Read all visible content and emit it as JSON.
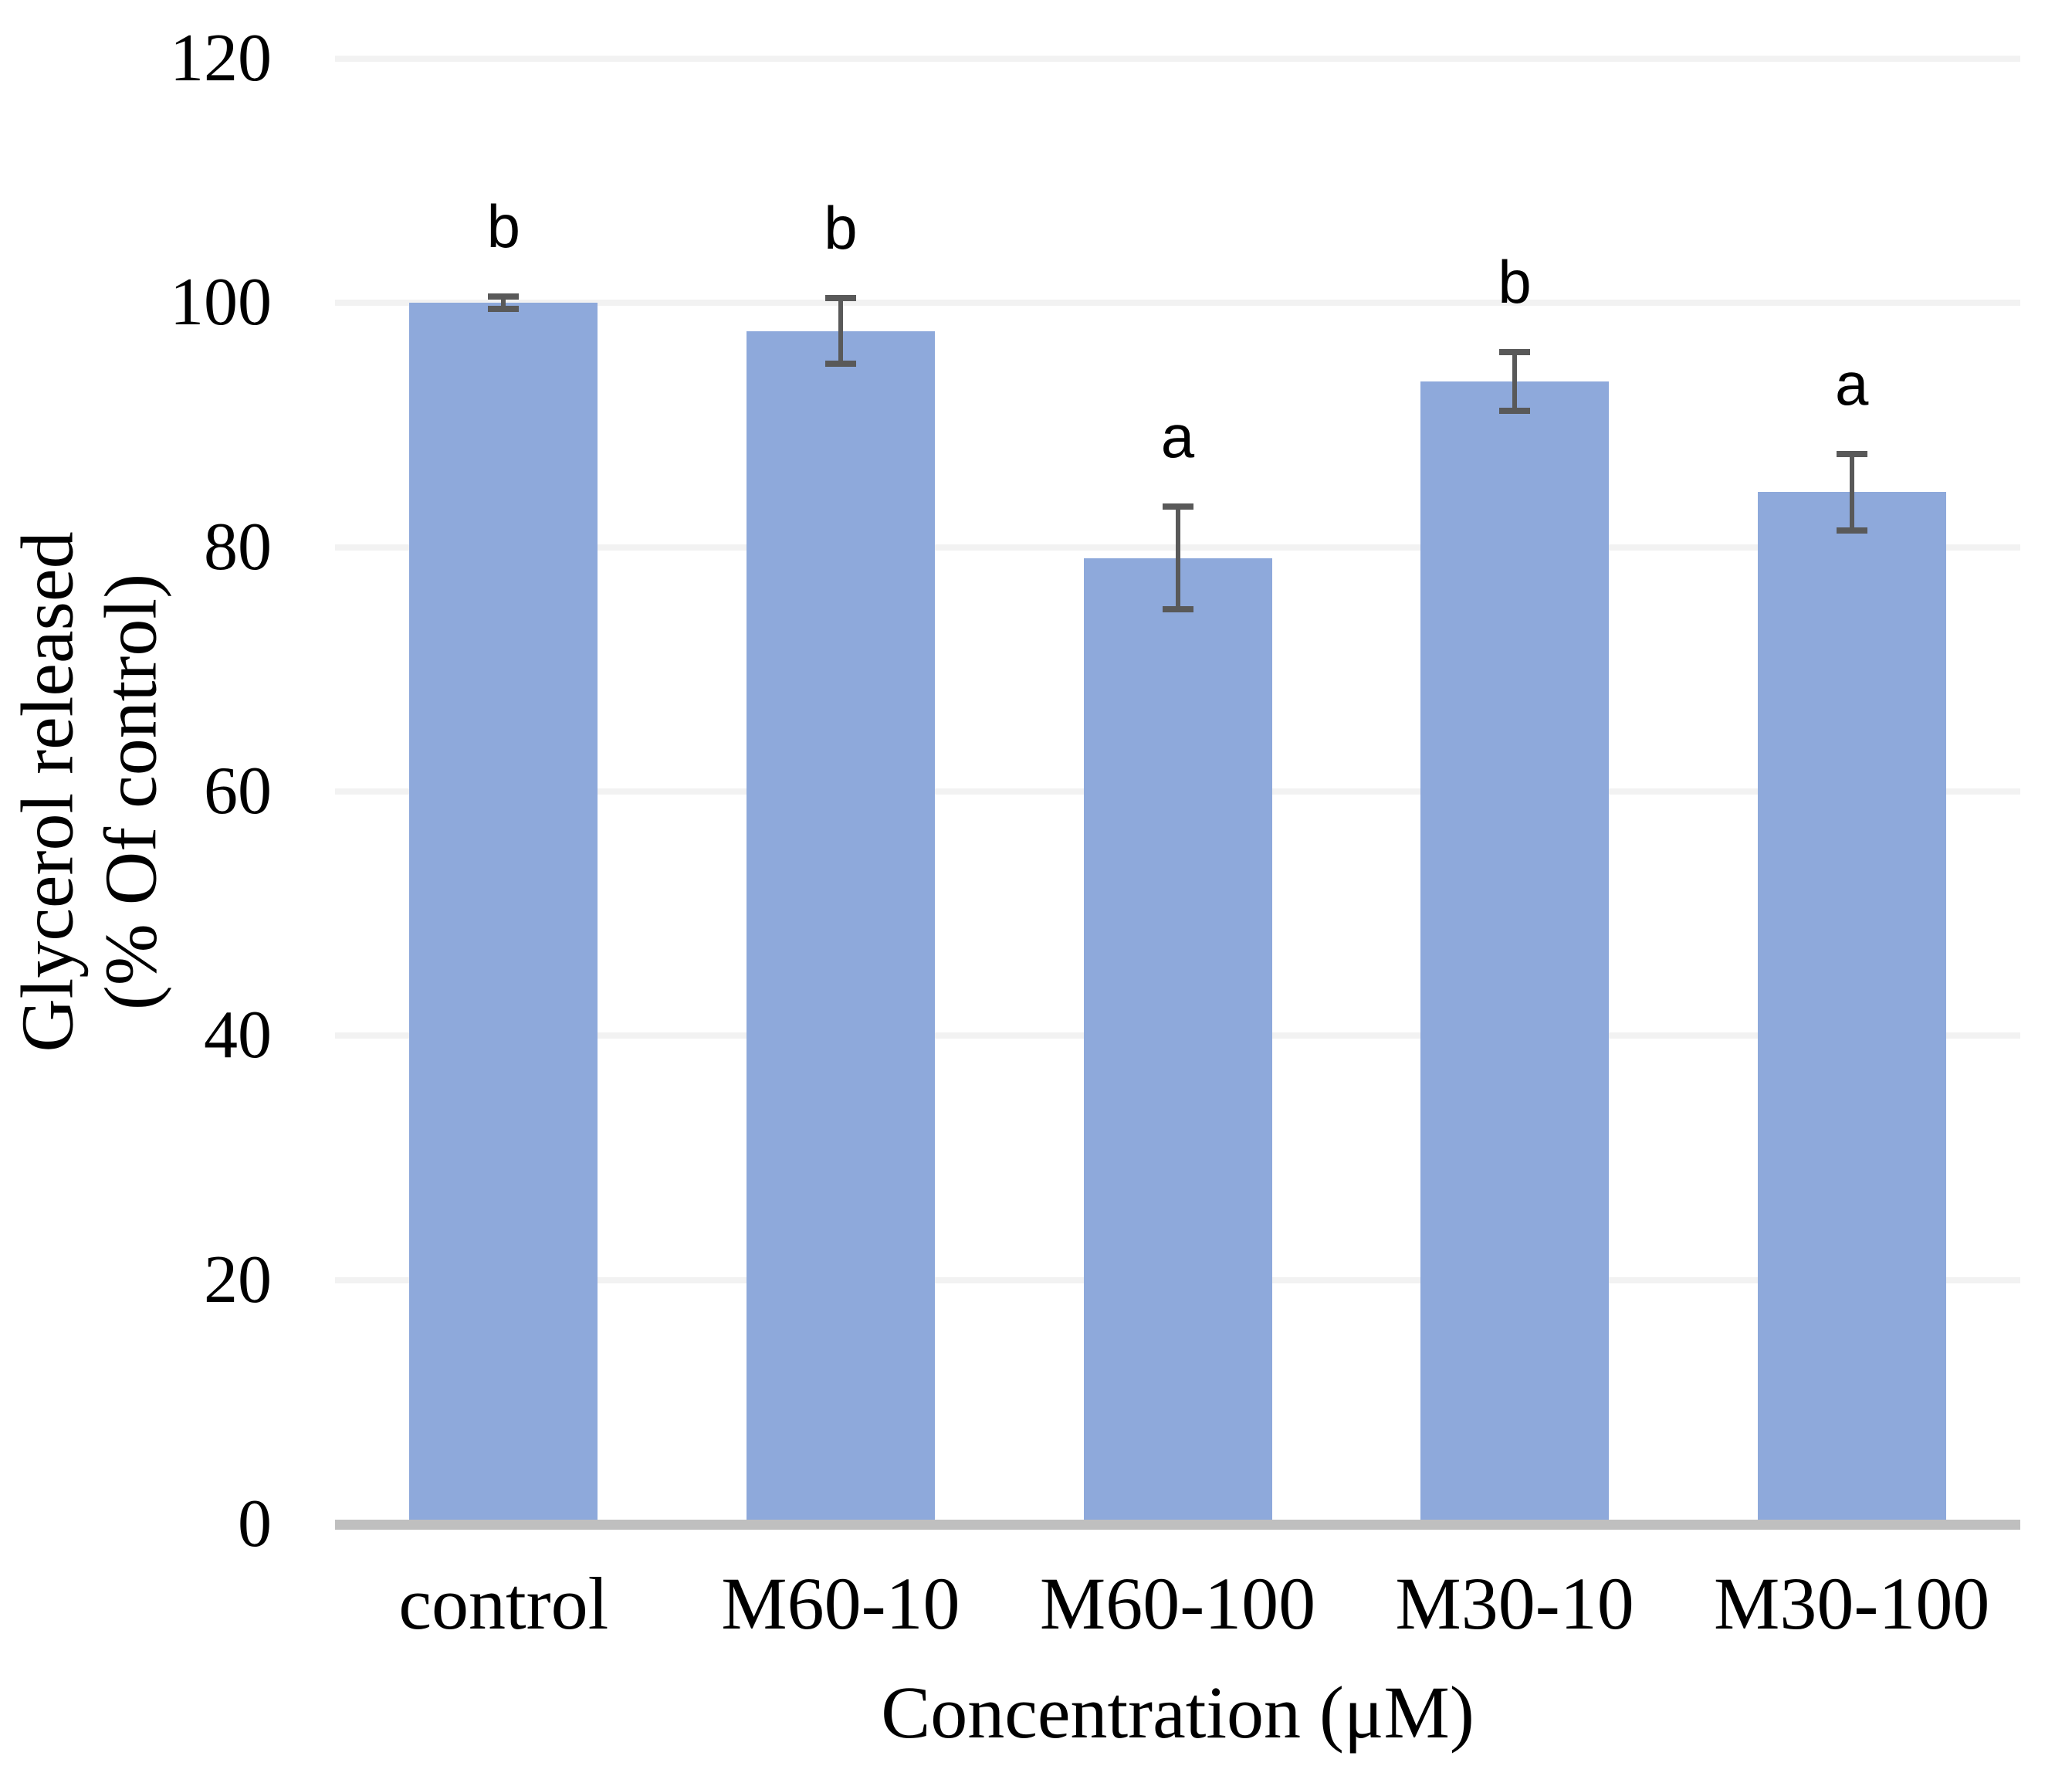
{
  "chart_data": {
    "type": "bar",
    "title": "",
    "xlabel": "Concentration (μM)",
    "ylabel_line1": "Glycerol released",
    "ylabel_line2": "(% Of control)",
    "categories": [
      "control",
      "M60-10",
      "M60-100",
      "M30-10",
      "M30-100"
    ],
    "values": [
      100.0,
      97.7,
      79.1,
      93.6,
      84.5
    ],
    "error_bars": [
      0.5,
      2.7,
      4.2,
      2.4,
      3.1
    ],
    "significance_letters": [
      "b",
      "b",
      "a",
      "b",
      "a"
    ],
    "ylim": [
      0,
      120
    ],
    "yticks": [
      0,
      20,
      40,
      60,
      80,
      100,
      120
    ],
    "grid": "horizontal gridlines at every 20",
    "legend_position": "none",
    "colors": {
      "bar_fill": "#8EA9DB",
      "error_bar": "#595959",
      "gridline": "#F2F2F2",
      "axis_line": "#BFBFBF",
      "text": "#000000",
      "background": "#FFFFFF"
    }
  }
}
